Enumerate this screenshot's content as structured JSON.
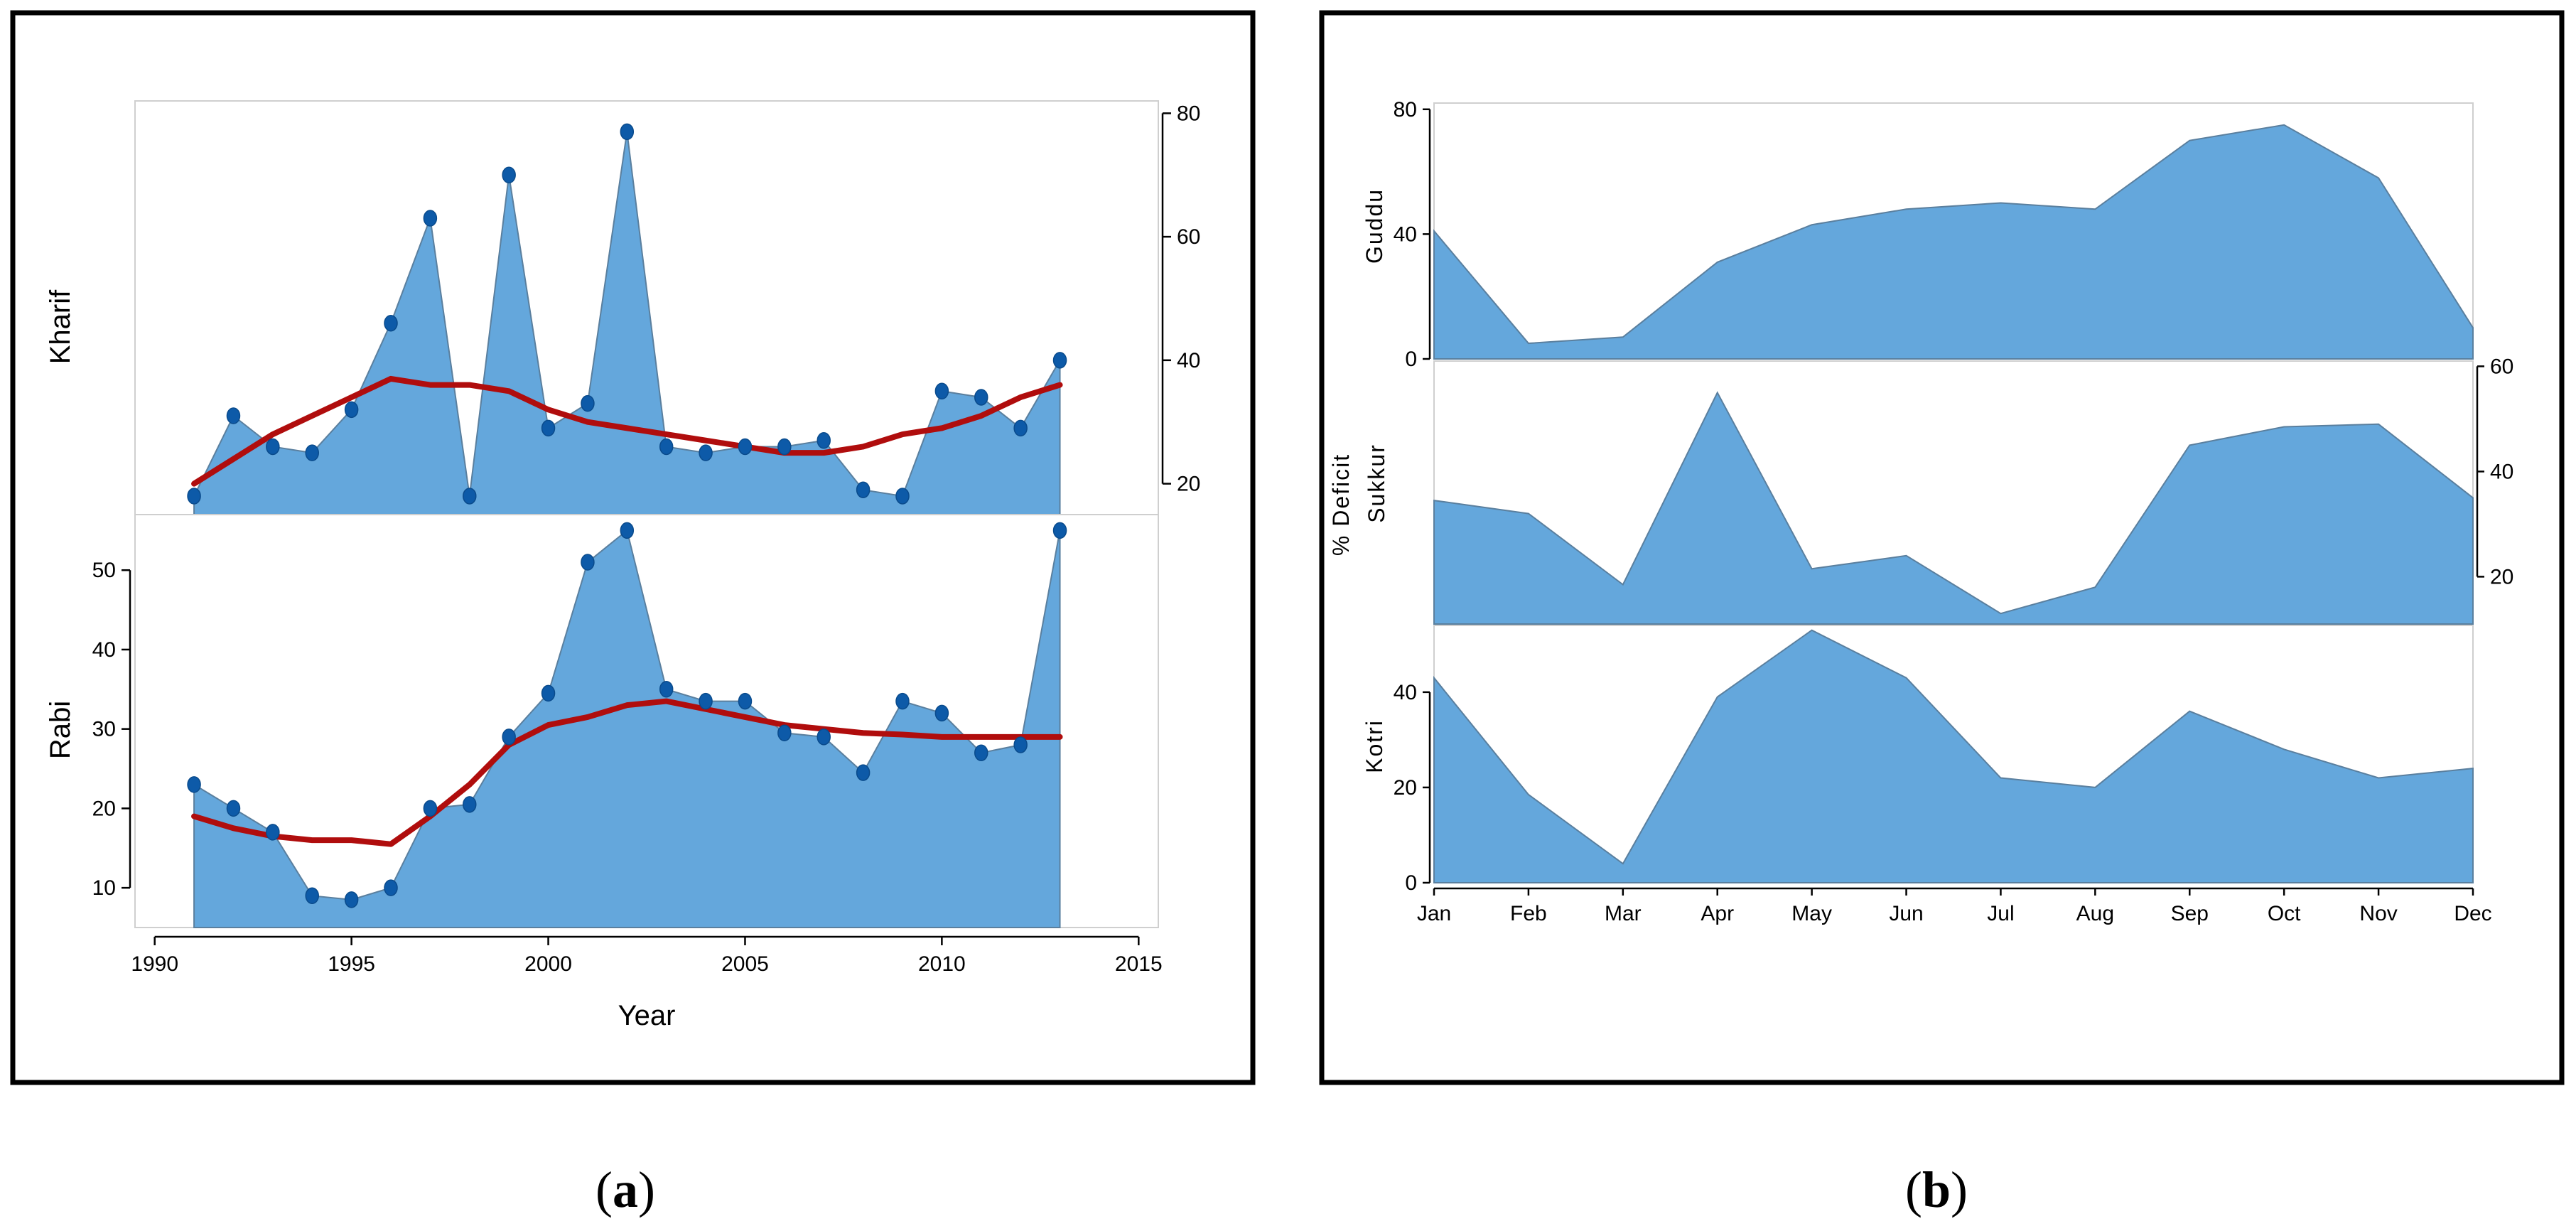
{
  "colors": {
    "area_fill": "#64a7dc",
    "trend_line": "#b00d0d",
    "marker": "#0d5aa8"
  },
  "chart_data": [
    {
      "panel": "a",
      "panel_label": "a",
      "type": "area",
      "title": "",
      "xlabel": "Year",
      "xlim": [
        1989.5,
        2015.5
      ],
      "xticks": [
        1990,
        1995,
        2000,
        2005,
        2010,
        2015
      ],
      "x": [
        1991,
        1992,
        1993,
        1994,
        1995,
        1996,
        1997,
        1998,
        1999,
        2000,
        2001,
        2002,
        2003,
        2004,
        2005,
        2006,
        2007,
        2008,
        2009,
        2010,
        2011,
        2012,
        2013
      ],
      "subplots": [
        {
          "name": "Kharif",
          "ylabel": "Kharif",
          "yaxis_side": "right",
          "ylim": [
            15,
            82
          ],
          "yticks": [
            20,
            40,
            60,
            80
          ],
          "values": [
            18,
            31,
            26,
            25,
            32,
            46,
            63,
            18,
            70,
            29,
            33,
            77,
            26,
            25,
            26,
            26,
            27,
            19,
            18,
            35,
            34,
            29,
            40
          ],
          "smooth": [
            20,
            24,
            28,
            31,
            34,
            37,
            36,
            36,
            35,
            32,
            30,
            29,
            28,
            27,
            26,
            25,
            25,
            26,
            28,
            29,
            31,
            34,
            36
          ]
        },
        {
          "name": "Rabi",
          "ylabel": "Rabi",
          "yaxis_side": "left",
          "ylim": [
            5,
            57
          ],
          "yticks": [
            10,
            20,
            30,
            40,
            50
          ],
          "values": [
            23,
            20,
            17,
            9,
            8.5,
            10,
            20,
            20.5,
            29,
            34.5,
            51,
            55,
            35,
            33.5,
            33.5,
            29.5,
            29,
            24.5,
            33.5,
            32,
            27,
            28,
            55
          ],
          "smooth": [
            19,
            17.5,
            16.5,
            16,
            16,
            15.5,
            19,
            23,
            28,
            30.5,
            31.5,
            33,
            33.5,
            32.5,
            31.5,
            30.5,
            30,
            29.5,
            29.3,
            29,
            29,
            29,
            29
          ]
        }
      ]
    },
    {
      "panel": "b",
      "panel_label": "b",
      "type": "area",
      "title": "",
      "ylabel": "% Deficit",
      "categories": [
        "Jan",
        "Feb",
        "Mar",
        "Apr",
        "May",
        "Jun",
        "Jul",
        "Aug",
        "Sep",
        "Oct",
        "Nov",
        "Dec"
      ],
      "subplots": [
        {
          "name": "Guddu",
          "ylabel": "Guddu",
          "yaxis_side": "left",
          "ylim": [
            0,
            82
          ],
          "yticks": [
            0,
            40,
            80
          ],
          "values": [
            41,
            5,
            7,
            31,
            43,
            48,
            50,
            48,
            70,
            75,
            58,
            10
          ]
        },
        {
          "name": "Sukkur",
          "ylabel": "Sukkur",
          "yaxis_side": "right",
          "ylim": [
            11,
            61
          ],
          "yticks": [
            20,
            40,
            60
          ],
          "values": [
            34.5,
            32,
            18.5,
            55,
            21.5,
            24,
            13,
            18,
            45,
            48.5,
            49,
            35
          ]
        },
        {
          "name": "Kotri",
          "ylabel": "Kotri",
          "yaxis_side": "left",
          "ylim": [
            0,
            54
          ],
          "yticks": [
            0,
            20,
            40
          ],
          "values": [
            43,
            18.5,
            4,
            39,
            53,
            43,
            22,
            20,
            36,
            28,
            22,
            24
          ]
        }
      ]
    }
  ]
}
